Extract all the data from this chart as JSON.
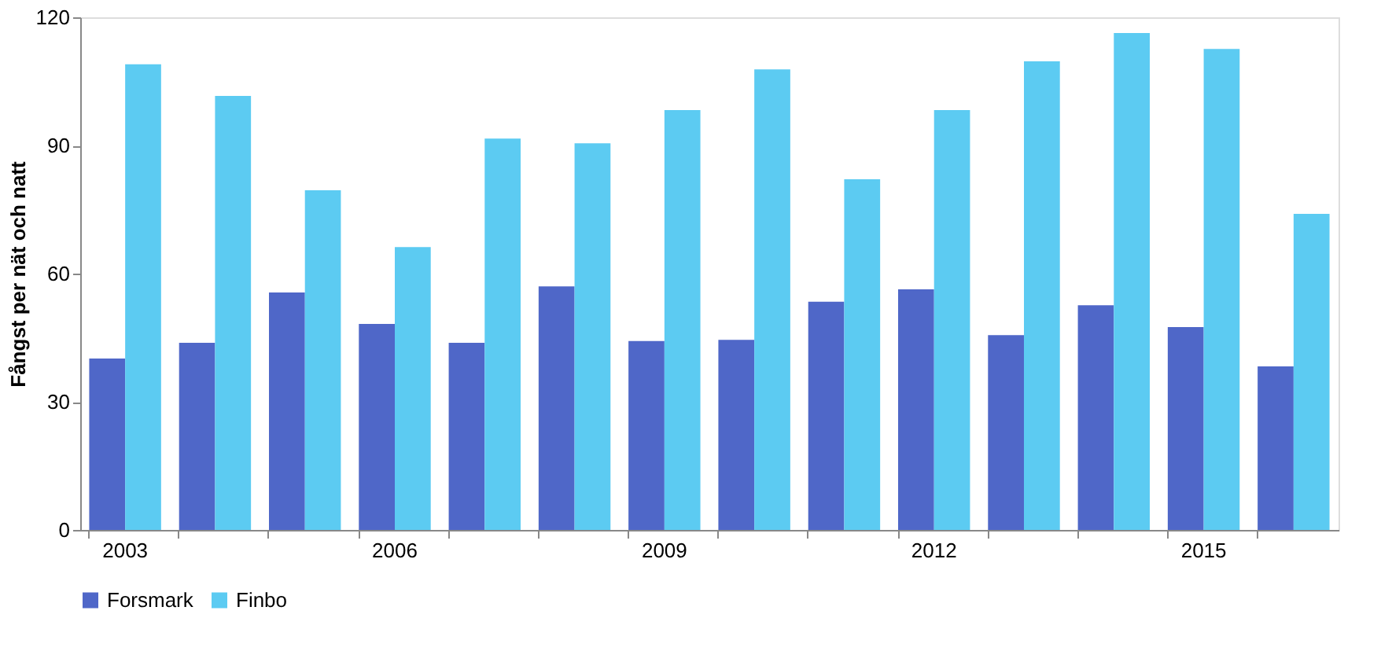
{
  "chart_data": {
    "type": "bar",
    "ylabel": "Fångst per nät och natt",
    "categories": [
      "2003",
      null,
      null,
      "2006",
      null,
      null,
      "2009",
      null,
      null,
      "2012",
      null,
      null,
      "2015",
      null
    ],
    "series": [
      {
        "name": "Forsmark",
        "color": "#4f67c8",
        "values": [
          40.1,
          43.8,
          55.6,
          48.2,
          43.8,
          57.0,
          44.2,
          44.5,
          53.4,
          56.3,
          45.6,
          52.6,
          47.5,
          38.3
        ]
      },
      {
        "name": "Finbo",
        "color": "#5ccbf2",
        "values": [
          109.0,
          101.6,
          79.5,
          66.2,
          91.6,
          90.5,
          98.3,
          107.8,
          82.1,
          98.3,
          109.7,
          116.3,
          112.6,
          74.0
        ]
      }
    ],
    "ylim": [
      0,
      120
    ],
    "yticks": [
      0,
      30,
      60,
      90,
      120
    ],
    "grid": false,
    "legend": "bottom"
  }
}
